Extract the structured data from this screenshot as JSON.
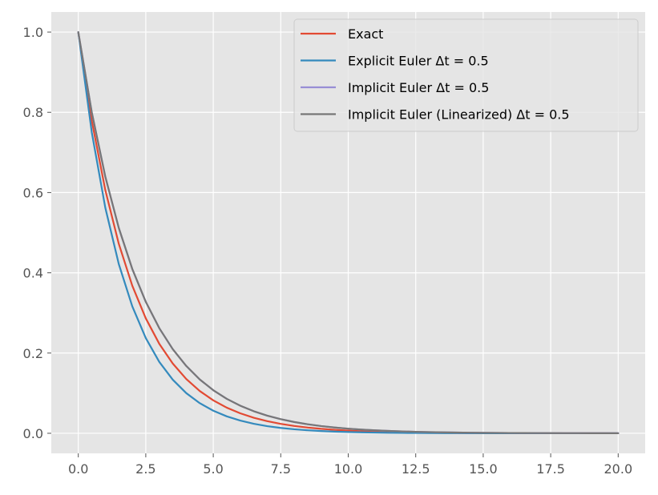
{
  "chart_data": {
    "type": "line",
    "title": "",
    "xlabel": "",
    "ylabel": "",
    "xlim": [
      -1,
      21
    ],
    "ylim": [
      -0.05,
      1.05
    ],
    "grid": true,
    "legend_placement": "top-right",
    "x_ticks": [
      0,
      2.5,
      5,
      7.5,
      10,
      12.5,
      15,
      17.5,
      20
    ],
    "x_tick_labels": [
      "0.0",
      "2.5",
      "5.0",
      "7.5",
      "10.0",
      "12.5",
      "15.0",
      "17.5",
      "20.0"
    ],
    "y_ticks": [
      0,
      0.2,
      0.4,
      0.6,
      0.8,
      1.0
    ],
    "y_tick_labels": [
      "0.0",
      "0.2",
      "0.4",
      "0.6",
      "0.8",
      "1.0"
    ],
    "x": [
      0,
      0.5,
      1,
      1.5,
      2,
      2.5,
      3,
      3.5,
      4,
      4.5,
      5,
      5.5,
      6,
      6.5,
      7,
      7.5,
      8,
      8.5,
      9,
      9.5,
      10,
      10.5,
      11,
      11.5,
      12,
      12.5,
      13,
      13.5,
      14,
      14.5,
      15,
      15.5,
      16,
      16.5,
      17,
      17.5,
      18,
      18.5,
      19,
      19.5,
      20
    ],
    "series": [
      {
        "name": "Exact",
        "color": "#E24A33",
        "values": [
          1.0,
          0.7788,
          0.6065,
          0.4724,
          0.3679,
          0.2865,
          0.2231,
          0.1738,
          0.1353,
          0.1054,
          0.0821,
          0.0639,
          0.0498,
          0.0388,
          0.0302,
          0.0235,
          0.0183,
          0.0143,
          0.0111,
          0.0087,
          0.0067,
          0.0052,
          0.0041,
          0.0032,
          0.0025,
          0.0019,
          0.0015,
          0.0012,
          0.0009,
          0.0007,
          0.0006,
          0.0004,
          0.0003,
          0.0003,
          0.0002,
          0.0002,
          0.0001,
          0.0001,
          0.0001,
          0.0001,
          0.0
        ]
      },
      {
        "name": "Explicit Euler Δt = 0.5",
        "color": "#348ABD",
        "values": [
          1.0,
          0.75,
          0.5625,
          0.4219,
          0.3164,
          0.2373,
          0.178,
          0.1335,
          0.1001,
          0.0751,
          0.0563,
          0.0422,
          0.0317,
          0.0238,
          0.0178,
          0.0134,
          0.01,
          0.0075,
          0.0056,
          0.0042,
          0.0032,
          0.0024,
          0.0018,
          0.0013,
          0.001,
          0.0008,
          0.0006,
          0.0004,
          0.0003,
          0.0002,
          0.0002,
          0.0001,
          0.0001,
          0.0001,
          0.0001,
          0.0,
          0.0,
          0.0,
          0.0,
          0.0,
          0.0
        ]
      },
      {
        "name": "Implicit Euler Δt = 0.5",
        "color": "#988ED5",
        "values": [
          1.0,
          0.8,
          0.64,
          0.512,
          0.4096,
          0.3277,
          0.2621,
          0.2097,
          0.1678,
          0.1342,
          0.1074,
          0.0859,
          0.0687,
          0.055,
          0.044,
          0.0352,
          0.0281,
          0.0225,
          0.018,
          0.0144,
          0.0115,
          0.0092,
          0.0074,
          0.0059,
          0.0047,
          0.0038,
          0.003,
          0.0024,
          0.0019,
          0.0015,
          0.0012,
          0.001,
          0.0008,
          0.0006,
          0.0005,
          0.0004,
          0.0003,
          0.0003,
          0.0002,
          0.0002,
          0.0001
        ]
      },
      {
        "name": "Implicit Euler (Linearized) Δt = 0.5",
        "color": "#777777",
        "values": [
          1.0,
          0.8,
          0.64,
          0.512,
          0.4096,
          0.3277,
          0.2621,
          0.2097,
          0.1678,
          0.1342,
          0.1074,
          0.0859,
          0.0687,
          0.055,
          0.044,
          0.0352,
          0.0281,
          0.0225,
          0.018,
          0.0144,
          0.0115,
          0.0092,
          0.0074,
          0.0059,
          0.0047,
          0.0038,
          0.003,
          0.0024,
          0.0019,
          0.0015,
          0.0012,
          0.001,
          0.0008,
          0.0006,
          0.0005,
          0.0004,
          0.0003,
          0.0003,
          0.0002,
          0.0002,
          0.0001
        ]
      }
    ]
  },
  "style": {
    "axes_background": "#E5E5E5",
    "grid_color": "#FFFFFF",
    "tick_color": "#555555"
  }
}
